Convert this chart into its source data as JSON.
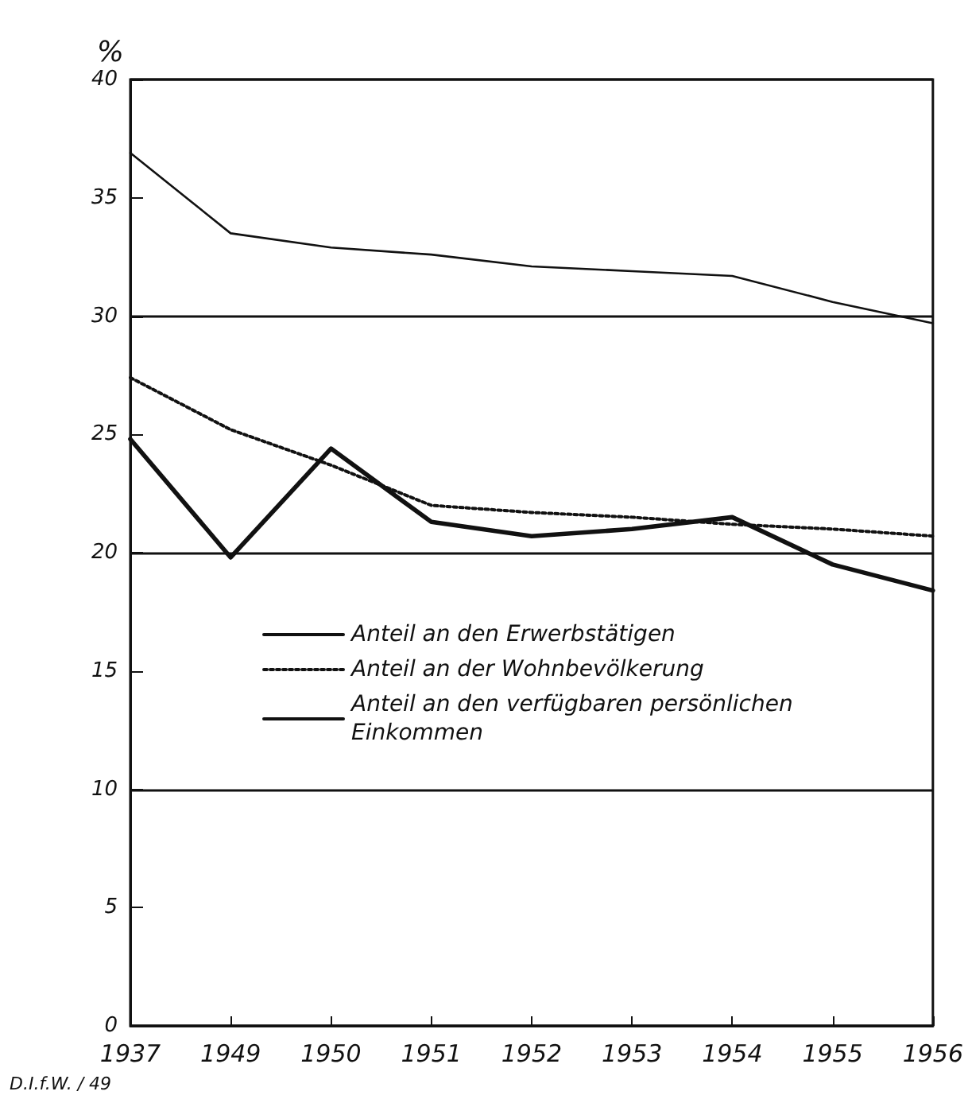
{
  "chart_data": {
    "type": "line",
    "ylabel": "%",
    "categories": [
      "1937",
      "1949",
      "1950",
      "1951",
      "1952",
      "1953",
      "1954",
      "1955",
      "1956"
    ],
    "series": [
      {
        "name": "Anteil an den Erwerbstätigen",
        "color": "#111111",
        "line_style": "solid",
        "values": [
          36.9,
          33.5,
          32.9,
          32.6,
          32.1,
          31.9,
          31.7,
          30.6,
          29.7
        ]
      },
      {
        "name": "Anteil an der Wohnbevölkerung",
        "color": "#111111",
        "line_style": "dotted",
        "values": [
          27.4,
          25.2,
          23.7,
          22.0,
          21.7,
          21.5,
          21.2,
          21.0,
          20.7
        ]
      },
      {
        "name": "Anteil an den verfügbaren persönlichen Einkommen",
        "color": "#111111",
        "line_style": "solid",
        "values": [
          24.8,
          19.8,
          24.4,
          21.3,
          20.7,
          21.0,
          21.5,
          19.5,
          18.4
        ]
      }
    ],
    "ylim": [
      0,
      40
    ],
    "yticks": [
      0,
      5,
      10,
      15,
      20,
      25,
      30,
      35,
      40
    ],
    "grid": "y",
    "legend": "left",
    "marker": "none",
    "annotations": [
      "D.I.f.W. / 49"
    ]
  }
}
